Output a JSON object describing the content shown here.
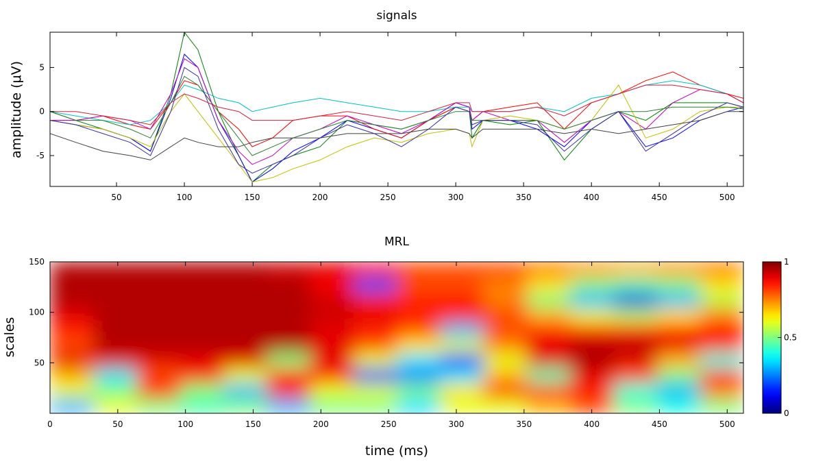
{
  "chart_data": [
    {
      "type": "line",
      "title": "signals",
      "ylabel": "amplitude (μV)",
      "x": [
        1,
        20,
        40,
        60,
        75,
        90,
        100,
        110,
        125,
        140,
        150,
        165,
        180,
        200,
        220,
        240,
        260,
        280,
        300,
        310,
        312,
        320,
        340,
        360,
        380,
        400,
        420,
        440,
        460,
        480,
        500,
        512
      ],
      "xlim": [
        1,
        512
      ],
      "xticks": [
        50,
        100,
        150,
        200,
        250,
        300,
        350,
        400,
        450,
        500
      ],
      "ylim": [
        -8.5,
        9
      ],
      "yticks": [
        -5,
        0,
        5
      ],
      "series": [
        {
          "color": "#008000",
          "values": [
            0,
            -1,
            -2,
            -3,
            -4.5,
            2,
            9,
            7,
            0,
            -5,
            -8,
            -6,
            -5,
            -4,
            -1,
            -1.5,
            -2,
            -1,
            0.5,
            0,
            -3,
            -1,
            -1.5,
            -1,
            -5.5,
            -2,
            0,
            -1,
            1,
            1,
            1,
            0.5
          ]
        },
        {
          "color": "#0000ff",
          "values": [
            -1,
            -1.5,
            -2,
            -3,
            -4.5,
            1.5,
            6.5,
            5,
            -1,
            -5,
            -8,
            -6.5,
            -4.5,
            -3,
            -1,
            -2,
            -3,
            -1,
            1,
            0.5,
            -2,
            -1,
            -1,
            -2,
            -4,
            -1,
            0,
            -4,
            -3,
            -1,
            0,
            0.5
          ]
        },
        {
          "color": "#ff0000",
          "values": [
            -1,
            -1,
            -0.5,
            -1.5,
            -2,
            1,
            3.5,
            3,
            0,
            -2,
            -4,
            -3,
            -1,
            -0.5,
            -0.5,
            -2,
            -3,
            -1,
            0.5,
            0,
            -1,
            0,
            0.5,
            1,
            -2,
            1,
            2,
            3.5,
            4.5,
            3,
            2,
            1.5
          ]
        },
        {
          "color": "#00bfbf",
          "values": [
            0,
            -0.5,
            -1,
            -1.5,
            -1,
            1,
            3,
            2.5,
            1.5,
            1,
            0,
            0.5,
            1,
            1.5,
            1,
            0.5,
            0,
            0,
            0.5,
            0.5,
            0,
            0,
            0,
            0.5,
            0,
            1.5,
            2,
            3,
            3.5,
            3,
            2,
            1
          ]
        },
        {
          "color": "#bf00bf",
          "values": [
            -1,
            -1,
            -0.5,
            -1,
            -2,
            2,
            6,
            5,
            -1,
            -4.5,
            -6,
            -5,
            -3,
            -2,
            -0.5,
            -1.5,
            -2.5,
            -1,
            1,
            0.5,
            -1,
            0,
            -1,
            -1,
            -3.5,
            -1,
            0,
            -2,
            1,
            2.5,
            2,
            1
          ]
        },
        {
          "color": "#bfbf00",
          "values": [
            -1,
            -1.5,
            -2,
            -3,
            -4,
            0,
            2,
            0,
            -3,
            -6,
            -8,
            -7.5,
            -6.5,
            -5.5,
            -4,
            -3,
            -3.5,
            -2.5,
            -2,
            -2.5,
            -4,
            -1,
            -0.5,
            -1,
            -2,
            -1,
            3,
            -3,
            -2,
            0,
            0.5,
            0.5
          ]
        },
        {
          "color": "#404040",
          "values": [
            -2.5,
            -3.5,
            -4.5,
            -5,
            -5.5,
            -4,
            -3,
            -3.5,
            -4,
            -4,
            -3.5,
            -3,
            -3,
            -3,
            -2.5,
            -2.5,
            -2.5,
            -2,
            -2,
            -2.5,
            -3,
            -2,
            -2,
            -2,
            -2.5,
            -2,
            -2.5,
            -2,
            -1.5,
            -1,
            0,
            0
          ]
        },
        {
          "color": "#2e7d32",
          "values": [
            0,
            -1,
            -1,
            -2,
            -3,
            1,
            4,
            3,
            0,
            -3,
            -5,
            -4,
            -3,
            -2,
            -1,
            -1.5,
            -2,
            -1,
            0,
            0,
            -1,
            -1,
            -1,
            -1,
            -2,
            -1,
            0,
            0,
            0.5,
            0.5,
            0.5,
            0.3
          ]
        },
        {
          "color": "#3a2fa0",
          "values": [
            -1,
            -1.5,
            -2.5,
            -3.5,
            -5,
            0,
            5,
            4,
            -2,
            -6,
            -7,
            -6,
            -5,
            -3,
            -1.5,
            -2.5,
            -4,
            -2,
            0.5,
            0,
            -1.5,
            -1,
            -1,
            -1.5,
            -4.5,
            -2,
            0,
            -4.5,
            -2.5,
            -0.5,
            1,
            0.5
          ]
        },
        {
          "color": "#d0203a",
          "values": [
            0,
            0,
            -0.5,
            -1,
            -1.5,
            1,
            2,
            1.5,
            0.5,
            0,
            -1,
            -1,
            -1,
            -0.5,
            0,
            -0.5,
            -1,
            0,
            1,
            1,
            0,
            0,
            0,
            0.5,
            -0.5,
            1,
            2,
            3,
            3,
            2.5,
            2,
            1
          ]
        }
      ]
    },
    {
      "type": "heatmap",
      "title": "MRL",
      "xlabel": "time (ms)",
      "ylabel": "scales",
      "x": [
        16,
        48,
        80,
        112,
        144,
        176,
        208,
        240,
        272,
        304,
        336,
        368,
        400,
        432,
        464,
        496
      ],
      "y": [
        7.5,
        22.5,
        37.5,
        52.5,
        67.5,
        82.5,
        97.5,
        112.5,
        127.5,
        142.5
      ],
      "xlim": [
        0,
        512
      ],
      "xticks": [
        0,
        50,
        100,
        150,
        200,
        250,
        300,
        350,
        400,
        450,
        500
      ],
      "ylim": [
        0,
        150
      ],
      "yticks": [
        50,
        100,
        150
      ],
      "values": [
        [
          0.3,
          0.6,
          0.5,
          0.45,
          0.5,
          0.3,
          0.5,
          0.5,
          0.35,
          0.6,
          0.6,
          0.7,
          0.8,
          0.5,
          0.4,
          0.5
        ],
        [
          0.6,
          0.5,
          0.85,
          0.5,
          0.3,
          0.85,
          0.6,
          0.6,
          0.5,
          0.65,
          0.85,
          0.85,
          0.85,
          0.4,
          0.3,
          0.75
        ],
        [
          0.7,
          0.35,
          0.8,
          0.85,
          0.6,
          0.85,
          0.85,
          0.15,
          0.25,
          0.35,
          0.7,
          0.45,
          0.9,
          0.8,
          0.5,
          0.85
        ],
        [
          0.9,
          0.9,
          0.9,
          0.9,
          0.9,
          0.5,
          0.9,
          0.6,
          0.35,
          0.15,
          0.6,
          0.9,
          0.95,
          0.9,
          0.7,
          0.4
        ],
        [
          0.8,
          0.95,
          0.95,
          0.95,
          0.95,
          0.95,
          0.9,
          0.8,
          0.65,
          0.6,
          0.75,
          0.9,
          0.95,
          0.95,
          0.9,
          0.85
        ],
        [
          0.85,
          0.95,
          0.95,
          0.95,
          0.95,
          0.95,
          0.9,
          0.85,
          0.8,
          0.3,
          0.8,
          0.85,
          0.85,
          0.85,
          0.85,
          0.85
        ],
        [
          0.9,
          0.95,
          0.95,
          0.95,
          0.95,
          0.95,
          0.92,
          0.9,
          0.85,
          0.85,
          0.8,
          0.7,
          0.6,
          0.55,
          0.65,
          0.75
        ],
        [
          0.95,
          0.95,
          0.95,
          0.95,
          0.95,
          0.95,
          0.92,
          0.85,
          0.85,
          0.85,
          0.75,
          0.5,
          0.3,
          0.1,
          0.3,
          0.55
        ],
        [
          0.95,
          0.95,
          0.95,
          0.95,
          0.95,
          0.95,
          0.88,
          0.2,
          0.8,
          0.8,
          0.75,
          0.65,
          0.5,
          0.45,
          0.5,
          0.65
        ],
        [
          0.95,
          0.95,
          0.95,
          0.95,
          0.95,
          0.92,
          0.9,
          0.85,
          0.8,
          0.8,
          0.8,
          0.75,
          0.72,
          0.7,
          0.72,
          0.75
        ]
      ],
      "clim": [
        0,
        1
      ],
      "cticks": [
        0,
        0.5,
        1
      ]
    }
  ]
}
